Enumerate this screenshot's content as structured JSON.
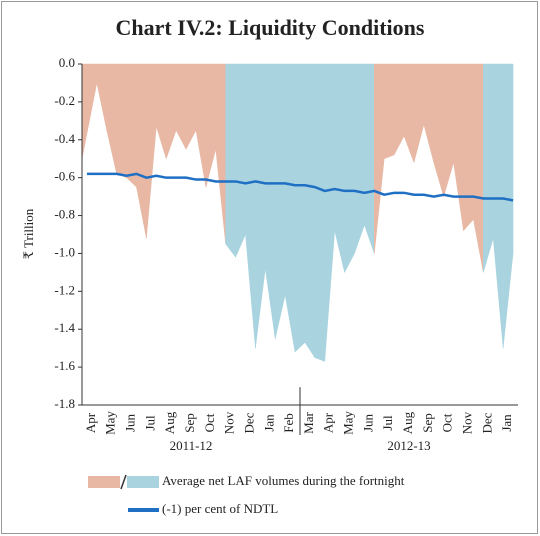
{
  "chart_data": {
    "type": "area",
    "title": "Chart IV.2: Liquidity Conditions",
    "y_label": "₹ Trillion",
    "categories": [
      "Apr",
      null,
      "May",
      null,
      "Jun",
      null,
      "Jul",
      null,
      "Aug",
      null,
      "Sep",
      null,
      "Oct",
      null,
      "Nov",
      null,
      "Dec",
      null,
      "Jan",
      null,
      "Feb",
      null,
      "Mar",
      null,
      "Apr",
      null,
      "May",
      null,
      "Jun",
      null,
      "Jul",
      null,
      "Aug",
      null,
      "Sep",
      null,
      "Oct",
      null,
      "Nov",
      null,
      "Dec",
      null,
      "Jan",
      null
    ],
    "groups": [
      "2011-12",
      "2012-13"
    ],
    "series": [
      {
        "name": "Average net LAF volumes during the fortnight",
        "kind": "area",
        "colors": [
          "#e8b8a4",
          "#a9d4df"
        ],
        "point_colors": [
          "#e8b8a4",
          "#e8b8a4",
          "#e8b8a4",
          "#e8b8a4",
          "#e8b8a4",
          "#e8b8a4",
          "#e8b8a4",
          "#e8b8a4",
          "#e8b8a4",
          "#e8b8a4",
          "#e8b8a4",
          "#e8b8a4",
          "#e8b8a4",
          "#e8b8a4",
          "#a9d4df",
          "#a9d4df",
          "#a9d4df",
          "#a9d4df",
          "#a9d4df",
          "#a9d4df",
          "#a9d4df",
          "#a9d4df",
          "#a9d4df",
          "#a9d4df",
          "#a9d4df",
          "#a9d4df",
          "#a9d4df",
          "#a9d4df",
          "#a9d4df",
          "#e8b8a4",
          "#e8b8a4",
          "#e8b8a4",
          "#e8b8a4",
          "#e8b8a4",
          "#e8b8a4",
          "#e8b8a4",
          "#e8b8a4",
          "#e8b8a4",
          "#e8b8a4",
          "#e8b8a4",
          "#a9d4df",
          "#a9d4df",
          "#a9d4df",
          "#a9d4df"
        ],
        "values": [
          -0.5,
          -0.1,
          -0.35,
          -0.58,
          -0.6,
          -0.65,
          -0.92,
          -0.33,
          -0.5,
          -0.35,
          -0.45,
          -0.35,
          -0.65,
          -0.45,
          -0.95,
          -1.02,
          -0.9,
          -1.5,
          -1.08,
          -1.45,
          -1.22,
          -1.52,
          -1.47,
          -1.55,
          -1.57,
          -0.88,
          -1.1,
          -1.0,
          -0.85,
          -1.0,
          -0.5,
          -0.48,
          -0.38,
          -0.52,
          -0.32,
          -0.52,
          -0.7,
          -0.52,
          -0.88,
          -0.82,
          -1.1,
          -0.92,
          -1.5,
          -1.0
        ]
      },
      {
        "name": "(-1) per cent of NDTL",
        "kind": "line",
        "color": "#1f6fc4",
        "values": [
          -0.58,
          -0.58,
          -0.58,
          -0.58,
          -0.59,
          -0.58,
          -0.6,
          -0.59,
          -0.6,
          -0.6,
          -0.6,
          -0.61,
          -0.61,
          -0.62,
          -0.62,
          -0.62,
          -0.63,
          -0.62,
          -0.63,
          -0.63,
          -0.63,
          -0.64,
          -0.64,
          -0.65,
          -0.67,
          -0.66,
          -0.67,
          -0.67,
          -0.68,
          -0.67,
          -0.69,
          -0.68,
          -0.68,
          -0.69,
          -0.69,
          -0.7,
          -0.69,
          -0.7,
          -0.7,
          -0.7,
          -0.71,
          -0.71,
          -0.71,
          -0.72
        ]
      }
    ],
    "ylim": [
      -1.8,
      0
    ],
    "yticks": [
      {
        "value": 0,
        "label": "0.0"
      },
      {
        "value": -0.2,
        "label": "-0.2"
      },
      {
        "value": -0.4,
        "label": "-0.4"
      },
      {
        "value": -0.6,
        "label": "-0.6"
      },
      {
        "value": -0.8,
        "label": "-0.8"
      },
      {
        "value": -1.0,
        "label": "-1.0"
      },
      {
        "value": -1.2,
        "label": "-1.2"
      },
      {
        "value": -1.4,
        "label": "-1.4"
      },
      {
        "value": -1.6,
        "label": "-1.6"
      },
      {
        "value": -1.8,
        "label": "-1.8"
      }
    ]
  }
}
